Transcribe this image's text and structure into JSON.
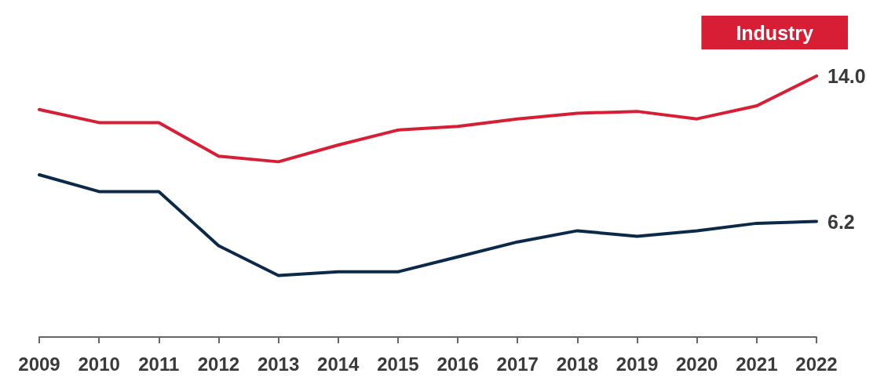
{
  "chart_data": {
    "type": "line",
    "categories": [
      "2009",
      "2010",
      "2011",
      "2012",
      "2013",
      "2014",
      "2015",
      "2016",
      "2017",
      "2018",
      "2019",
      "2020",
      "2021",
      "2022"
    ],
    "series": [
      {
        "name": "Industry",
        "color": "#d81e34",
        "values": [
          12.2,
          11.5,
          11.5,
          9.7,
          9.4,
          10.3,
          11.1,
          11.3,
          11.7,
          12.0,
          12.1,
          11.7,
          12.4,
          14.0
        ],
        "value_labels": [
          null,
          null,
          null,
          null,
          null,
          null,
          null,
          null,
          null,
          null,
          null,
          null,
          null,
          "14.0"
        ]
      },
      {
        "color": "#0b2a4a",
        "values": [
          8.7,
          7.8,
          7.8,
          4.9,
          3.3,
          3.5,
          3.5,
          4.3,
          5.1,
          5.7,
          5.4,
          5.7,
          6.1,
          6.2
        ],
        "value_labels": [
          null,
          null,
          null,
          null,
          null,
          null,
          null,
          null,
          null,
          null,
          null,
          null,
          null,
          "6.2"
        ]
      }
    ],
    "tick_labels": "x",
    "grid": false,
    "legend": "top right",
    "marker": "none",
    "line_style": "solid"
  }
}
